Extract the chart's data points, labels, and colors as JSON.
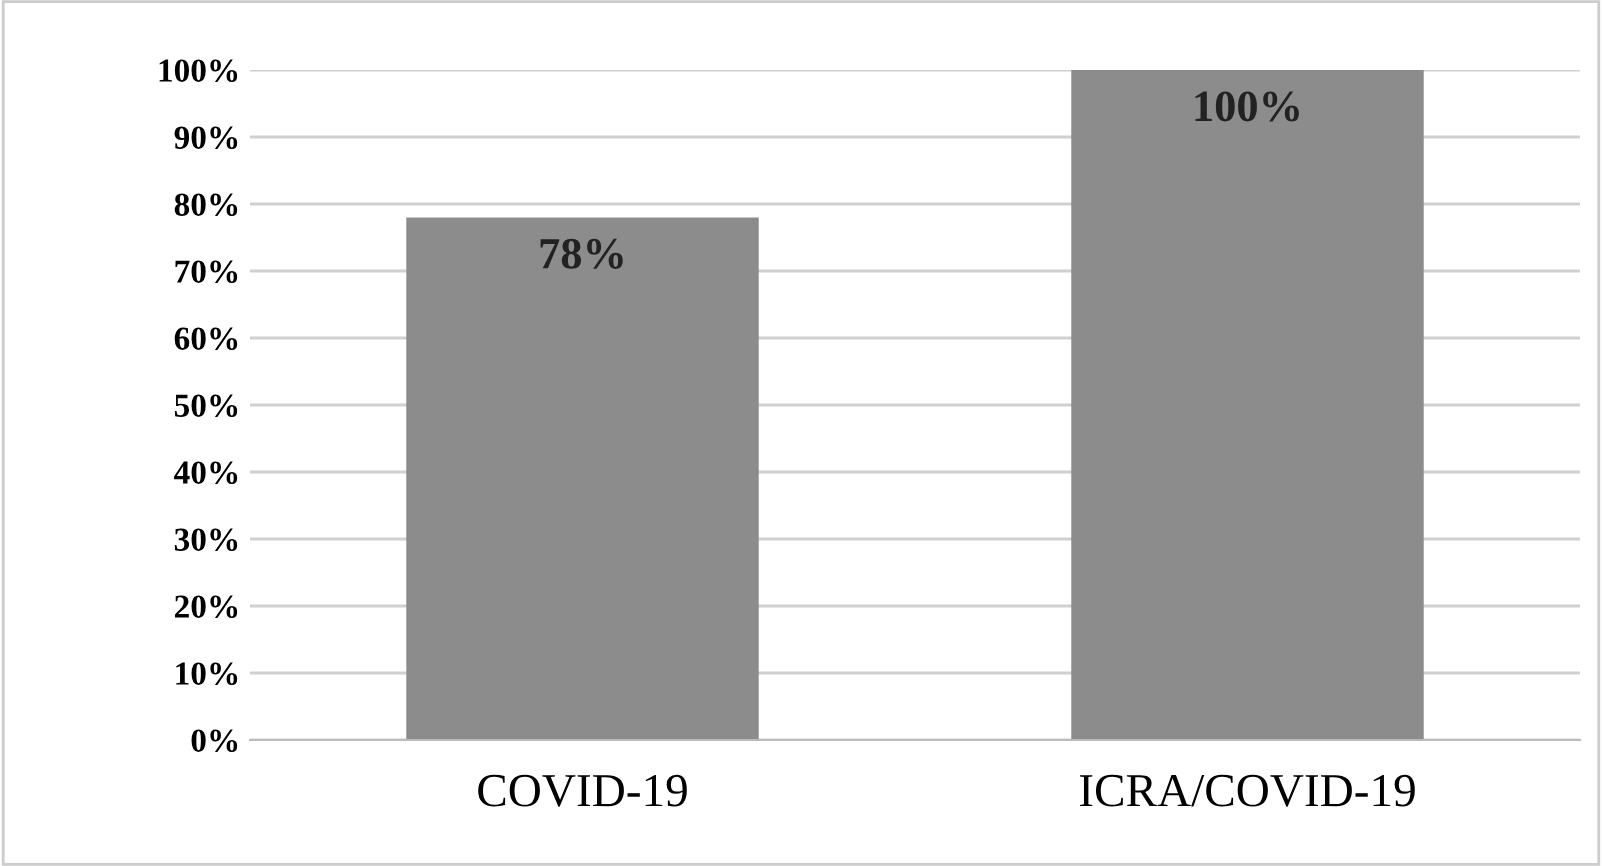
{
  "chart_data": {
    "type": "bar",
    "categories": [
      "COVID-19",
      "ICRA/COVID-19"
    ],
    "values": [
      78,
      100
    ],
    "color": "#8c8c8c",
    "value_labels": [
      "78%",
      "100%"
    ],
    "ylim": [
      0,
      100
    ],
    "yticks": [
      {
        "value": 0,
        "label": "0%"
      },
      {
        "value": 10,
        "label": "10%"
      },
      {
        "value": 20,
        "label": "20%"
      },
      {
        "value": 30,
        "label": "30%"
      },
      {
        "value": 40,
        "label": "40%"
      },
      {
        "value": 50,
        "label": "50%"
      },
      {
        "value": 60,
        "label": "60%"
      },
      {
        "value": 70,
        "label": "70%"
      },
      {
        "value": 80,
        "label": "80%"
      },
      {
        "value": 90,
        "label": "90%"
      },
      {
        "value": 100,
        "label": "100%"
      }
    ],
    "grid": "y",
    "legend": false
  }
}
